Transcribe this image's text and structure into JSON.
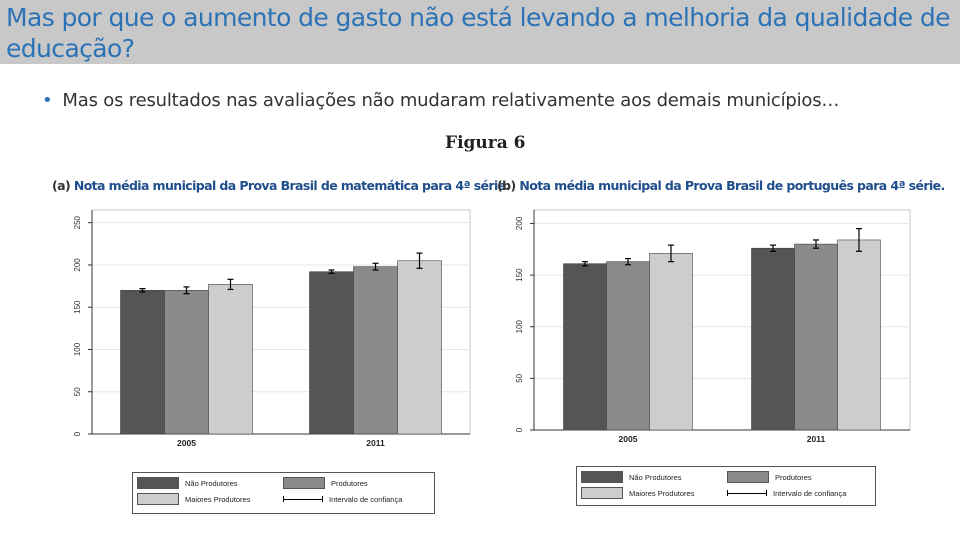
{
  "slide": {
    "title": "Mas por que o aumento de gasto não está levando a melhoria da qualidade de educação?",
    "bullet": "Mas os resultados nas avaliações não mudaram relativamente aos demais municípios…",
    "figure_title": "Figura 6"
  },
  "colors": {
    "title": "#2b73b6",
    "title_bar": "#c8c8c8",
    "series": [
      "#555555",
      "#8a8a8a",
      "#cdcdcd"
    ]
  },
  "legend": {
    "items": [
      "Não Produtores",
      "Produtores",
      "Maiores Produtores",
      "Intervalo de confiança"
    ]
  },
  "chart_data": [
    {
      "type": "bar",
      "panel_label": "(a)",
      "title": "Nota média municipal da Prova Brasil de matemática para 4ª série.",
      "categories": [
        "2005",
        "2011"
      ],
      "series": [
        {
          "name": "Não Produtores",
          "values": [
            170,
            192
          ],
          "ci": [
            [
              168,
              172
            ],
            [
              190,
              194
            ]
          ]
        },
        {
          "name": "Produtores",
          "values": [
            170,
            198
          ],
          "ci": [
            [
              166,
              174
            ],
            [
              194,
              202
            ]
          ]
        },
        {
          "name": "Maiores Produtores",
          "values": [
            177,
            205
          ],
          "ci": [
            [
              171,
              183
            ],
            [
              196,
              214
            ]
          ]
        }
      ],
      "yticks": [
        0,
        50,
        100,
        150,
        200,
        250
      ],
      "ylim": [
        0,
        265
      ],
      "grid": true,
      "legend_position": "bottom"
    },
    {
      "type": "bar",
      "panel_label": "(b)",
      "title": "Nota média municipal da Prova Brasil de português para 4ª série.",
      "categories": [
        "2005",
        "2011"
      ],
      "series": [
        {
          "name": "Não Produtores",
          "values": [
            161,
            176
          ],
          "ci": [
            [
              159,
              163
            ],
            [
              173,
              179
            ]
          ]
        },
        {
          "name": "Produtores",
          "values": [
            163,
            180
          ],
          "ci": [
            [
              160,
              166
            ],
            [
              176,
              184
            ]
          ]
        },
        {
          "name": "Maiores Produtores",
          "values": [
            171,
            184
          ],
          "ci": [
            [
              163,
              179
            ],
            [
              173,
              195
            ]
          ]
        }
      ],
      "yticks": [
        0,
        50,
        100,
        150,
        200
      ],
      "ylim": [
        0,
        213
      ],
      "grid": true,
      "legend_position": "bottom"
    }
  ]
}
